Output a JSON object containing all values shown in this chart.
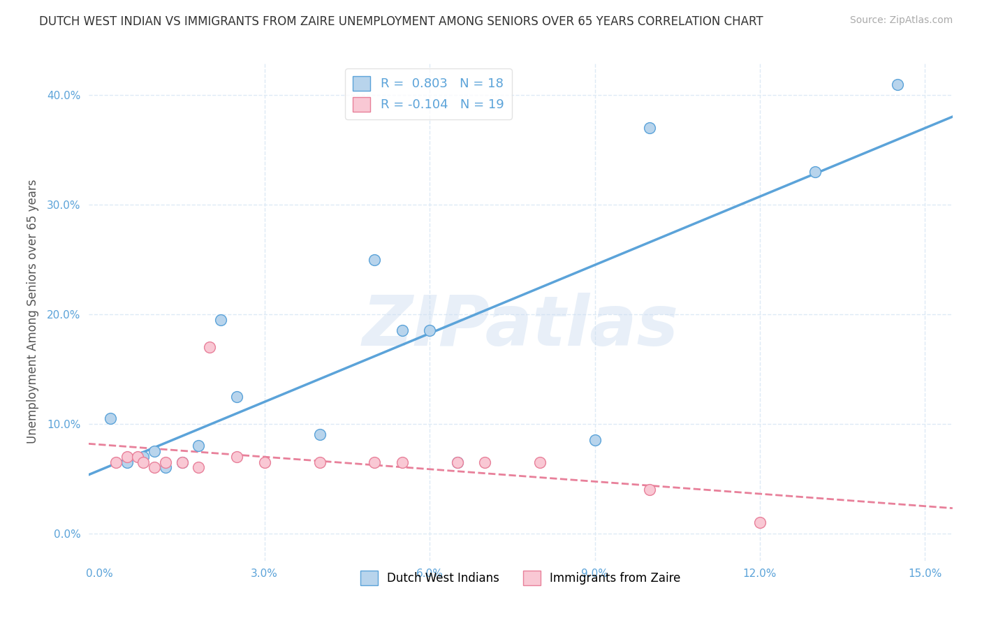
{
  "title": "DUTCH WEST INDIAN VS IMMIGRANTS FROM ZAIRE UNEMPLOYMENT AMONG SENIORS OVER 65 YEARS CORRELATION CHART",
  "source": "Source: ZipAtlas.com",
  "ylabel": "Unemployment Among Seniors over 65 years",
  "watermark": "ZIPatlas",
  "xlim": [
    -0.002,
    0.155
  ],
  "ylim": [
    -0.025,
    0.43
  ],
  "xticks": [
    0.0,
    0.03,
    0.06,
    0.09,
    0.12,
    0.15
  ],
  "yticks": [
    0.0,
    0.1,
    0.2,
    0.3,
    0.4
  ],
  "xtick_labels": [
    "0.0%",
    "3.0%",
    "6.0%",
    "9.0%",
    "12.0%",
    "15.0%"
  ],
  "ytick_labels": [
    "0.0%",
    "10.0%",
    "20.0%",
    "30.0%",
    "40.0%"
  ],
  "legend_entry1": "R =  0.803   N = 18",
  "legend_entry2": "R = -0.104   N = 19",
  "legend_label1": "Dutch West Indians",
  "legend_label2": "Immigrants from Zaire",
  "color_blue_fill": "#b8d4ec",
  "color_blue_edge": "#5ba3d9",
  "color_blue_line": "#5ba3d9",
  "color_pink_fill": "#f9c8d4",
  "color_pink_edge": "#e8809a",
  "color_pink_line": "#e8809a",
  "blue_x": [
    0.01,
    0.005,
    0.008,
    0.012,
    0.015,
    0.018,
    0.022,
    0.025,
    0.04,
    0.05,
    0.055,
    0.06,
    0.065,
    0.09,
    0.1,
    0.13,
    0.145,
    0.002
  ],
  "blue_y": [
    0.075,
    0.065,
    0.07,
    0.06,
    0.065,
    0.08,
    0.195,
    0.125,
    0.09,
    0.25,
    0.185,
    0.185,
    0.065,
    0.085,
    0.37,
    0.33,
    0.41,
    0.105
  ],
  "pink_x": [
    0.003,
    0.005,
    0.007,
    0.008,
    0.01,
    0.012,
    0.015,
    0.018,
    0.02,
    0.025,
    0.03,
    0.04,
    0.05,
    0.055,
    0.065,
    0.07,
    0.08,
    0.1,
    0.12
  ],
  "pink_y": [
    0.065,
    0.07,
    0.07,
    0.065,
    0.06,
    0.065,
    0.065,
    0.06,
    0.17,
    0.07,
    0.065,
    0.065,
    0.065,
    0.065,
    0.065,
    0.065,
    0.065,
    0.04,
    0.01
  ],
  "background_color": "#ffffff",
  "grid_color": "#ddeaf5",
  "title_color": "#333333",
  "tick_color_blue": "#5ba3d9",
  "source_color": "#aaaaaa",
  "legend_value_color": "#5ba3d9"
}
